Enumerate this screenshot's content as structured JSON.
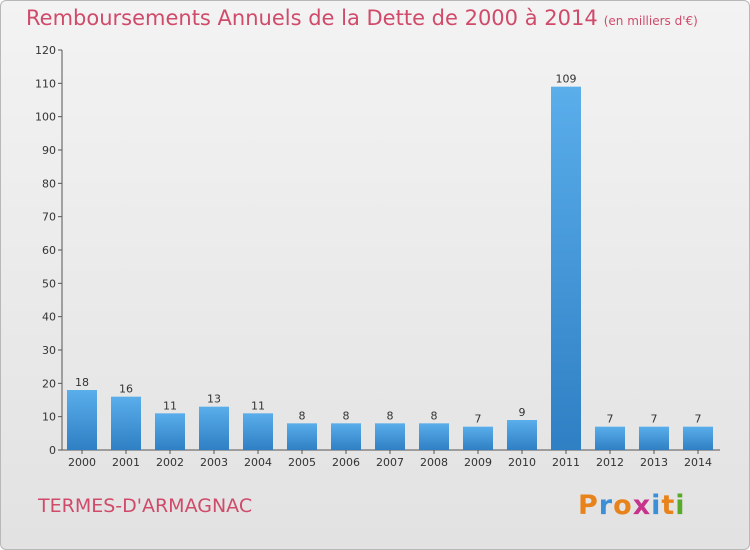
{
  "title": "Remboursements Annuels de la Dette de 2000 à 2014",
  "subtitle": "(en milliers d'€)",
  "commune": "TERMES-D'ARMAGNAC",
  "logo": {
    "text": "Proxiti",
    "letters": [
      {
        "ch": "P",
        "color": "#e8821a"
      },
      {
        "ch": "r",
        "color": "#3a8fd6"
      },
      {
        "ch": "o",
        "color": "#e8821a"
      },
      {
        "ch": "x",
        "color": "#c7338a"
      },
      {
        "ch": "i",
        "color": "#3a8fd6"
      },
      {
        "ch": "t",
        "color": "#e8821a"
      },
      {
        "ch": "i",
        "color": "#5aaa2a"
      }
    ]
  },
  "colors": {
    "title": "#d04a6a",
    "bar_top": "#5aaeea",
    "bar_bottom": "#2f7fc4"
  },
  "chart_data": {
    "type": "bar",
    "categories": [
      "2000",
      "2001",
      "2002",
      "2003",
      "2004",
      "2005",
      "2006",
      "2007",
      "2008",
      "2009",
      "2010",
      "2011",
      "2012",
      "2013",
      "2014"
    ],
    "values": [
      18,
      16,
      11,
      13,
      11,
      8,
      8,
      8,
      8,
      7,
      9,
      109,
      7,
      7,
      7
    ],
    "ylim": [
      0,
      120
    ],
    "yticks": [
      0,
      10,
      20,
      30,
      40,
      50,
      60,
      70,
      80,
      90,
      100,
      110,
      120
    ],
    "grid": false,
    "legend": "none"
  }
}
